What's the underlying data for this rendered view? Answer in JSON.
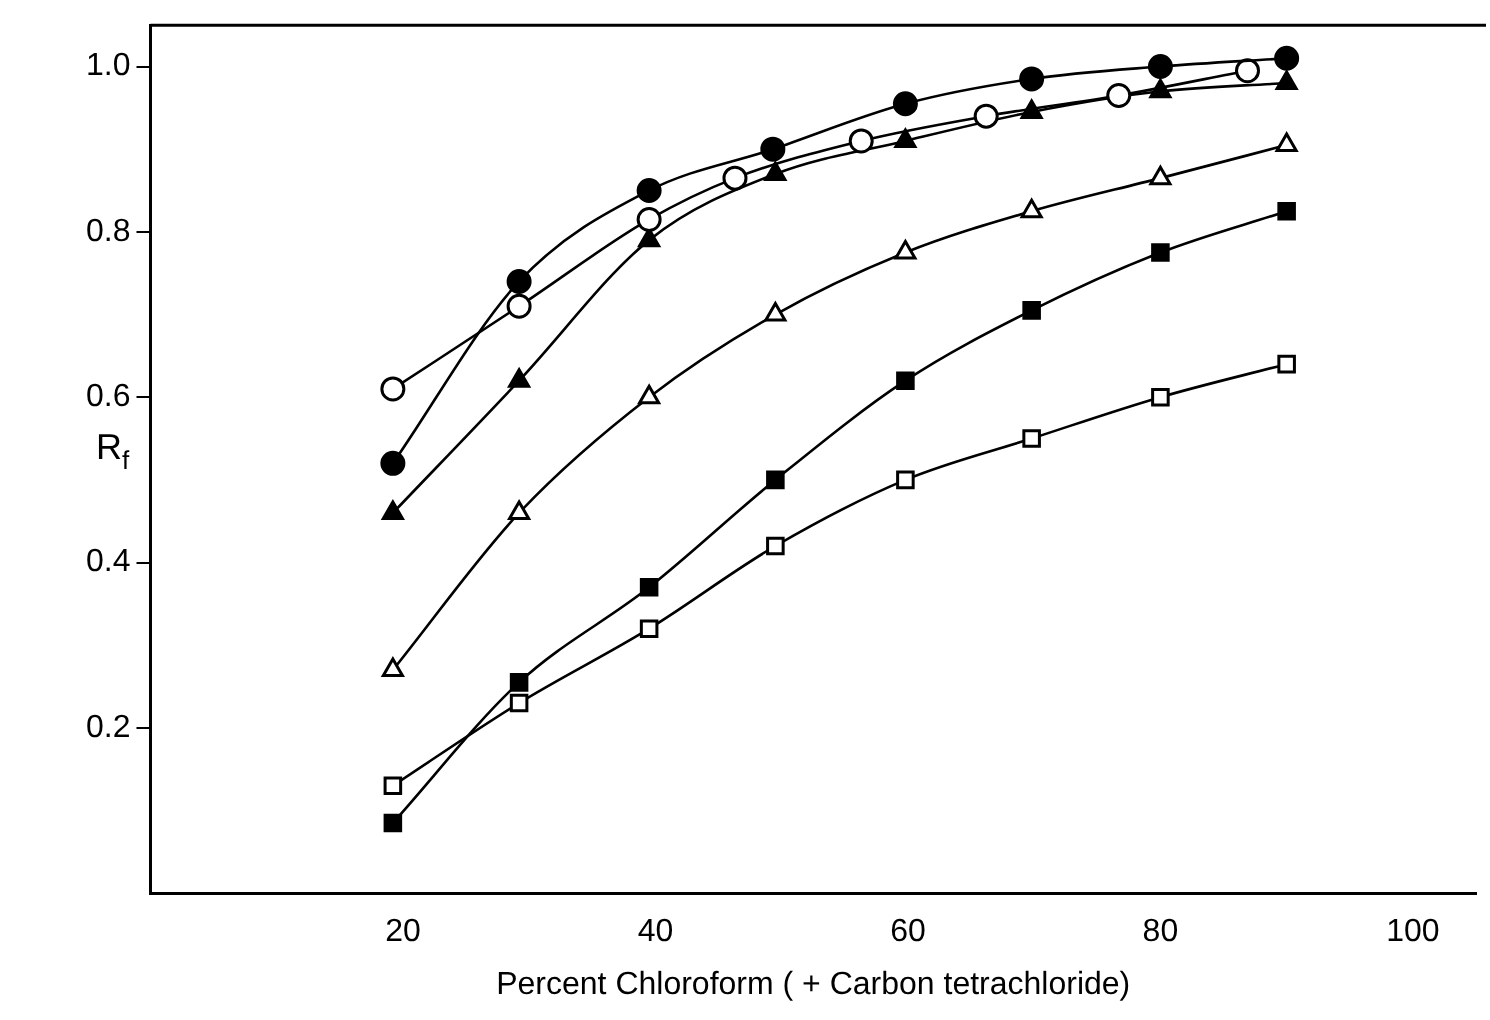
{
  "chart_data": {
    "type": "line",
    "xlabel": "Percent Chloroform ( + Carbon tetrachloride)",
    "ylabel": "R$_{f}$",
    "xlim": [
      0,
      105
    ],
    "xticks": [
      20,
      40,
      60,
      80,
      100
    ],
    "ylim": [
      0,
      1.05
    ],
    "yticks": [
      0.2,
      0.4,
      0.6,
      0.8,
      {
        "value": 1.0,
        "label": "1.0"
      }
    ],
    "grid": false,
    "legend": false,
    "line_style": "solid",
    "series": [
      {
        "marker": "circle",
        "color": "#000000",
        "x": [
          19.2,
          29.2,
          39.5,
          49.3,
          59.8,
          69.8,
          80,
          90
        ],
        "values": [
          0.52,
          0.74,
          0.85,
          0.9,
          0.955,
          0.985,
          1.0,
          1.01
        ]
      },
      {
        "marker": "circle",
        "color": "#ffffff",
        "x": [
          19.2,
          29.2,
          39.5,
          46.3,
          56.3,
          66.2,
          76.7,
          86.9
        ],
        "values": [
          0.61,
          0.71,
          0.815,
          0.865,
          0.91,
          0.94,
          0.965,
          0.995
        ]
      },
      {
        "marker": "triangle",
        "color": "#000000",
        "x": [
          19.2,
          29.2,
          39.5,
          49.5,
          59.8,
          69.8,
          80,
          90
        ],
        "values": [
          0.46,
          0.62,
          0.79,
          0.87,
          0.91,
          0.945,
          0.97,
          0.98
        ]
      },
      {
        "marker": "triangle",
        "color": "#ffffff",
        "x": [
          19.2,
          29.2,
          39.5,
          49.5,
          59.8,
          69.8,
          80,
          90
        ],
        "values": [
          0.27,
          0.46,
          0.6,
          0.7,
          0.775,
          0.825,
          0.865,
          0.905
        ]
      },
      {
        "marker": "square",
        "color": "#000000",
        "x": [
          19.2,
          29.2,
          39.5,
          49.5,
          59.8,
          69.8,
          80,
          90
        ],
        "values": [
          0.085,
          0.255,
          0.37,
          0.5,
          0.62,
          0.705,
          0.775,
          0.825
        ]
      },
      {
        "marker": "square",
        "color": "#ffffff",
        "x": [
          19.2,
          29.2,
          39.5,
          49.5,
          59.8,
          69.8,
          80,
          90
        ],
        "values": [
          0.13,
          0.23,
          0.32,
          0.42,
          0.5,
          0.55,
          0.6,
          0.64
        ]
      }
    ]
  }
}
